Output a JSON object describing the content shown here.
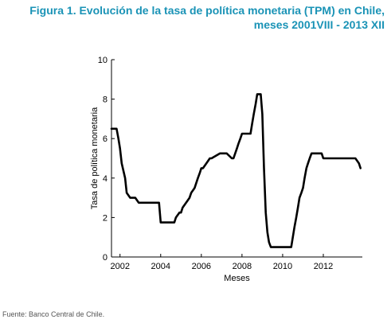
{
  "figure": {
    "title_line1": "Figura 1. Evolución de la tasa de política monetaria (TPM) en Chile,",
    "title_line2": "meses 2001VIII - 2013 XII"
  },
  "source": "Fuente: Banco Central de Chile.",
  "chart_data": {
    "type": "line",
    "xlabel": "Meses",
    "ylabel": "Tasa de política monetaria",
    "xlim": [
      2001.58,
      2013.92
    ],
    "ylim": [
      0,
      10
    ],
    "xticks": [
      2002,
      2004,
      2006,
      2008,
      2010,
      2012
    ],
    "yticks": [
      0,
      2,
      4,
      6,
      8,
      10
    ],
    "grid": false,
    "line_color": "#000000",
    "series": [
      {
        "x": [
          2001.58,
          2001.83,
          2001.92,
          2002.0,
          2002.08,
          2002.25,
          2002.33,
          2002.5,
          2002.58,
          2002.75,
          2002.92,
          2003.0,
          2003.5,
          2003.92,
          2004.0,
          2004.58,
          2004.67,
          2004.75,
          2004.92,
          2005.0,
          2005.08,
          2005.25,
          2005.42,
          2005.5,
          2005.67,
          2005.83,
          2005.92,
          2006.0,
          2006.08,
          2006.25,
          2006.42,
          2006.5,
          2006.92,
          2007.0,
          2007.25,
          2007.5,
          2007.58,
          2007.75,
          2007.83,
          2007.92,
          2008.0,
          2008.42,
          2008.5,
          2008.58,
          2008.67,
          2008.75,
          2008.92,
          2009.0,
          2009.08,
          2009.17,
          2009.25,
          2009.33,
          2009.42,
          2009.5,
          2010.0,
          2010.42,
          2010.5,
          2010.58,
          2010.67,
          2010.75,
          2010.83,
          2010.92,
          2011.0,
          2011.08,
          2011.17,
          2011.25,
          2011.33,
          2011.42,
          2011.92,
          2012.0,
          2013.58,
          2013.75,
          2013.83
        ],
        "values": [
          6.5,
          6.5,
          6.0,
          5.5,
          4.75,
          4.0,
          3.25,
          3.0,
          3.0,
          3.0,
          2.75,
          2.75,
          2.75,
          2.75,
          1.75,
          1.75,
          1.75,
          2.0,
          2.25,
          2.25,
          2.5,
          2.75,
          3.0,
          3.25,
          3.5,
          4.0,
          4.25,
          4.5,
          4.5,
          4.75,
          5.0,
          5.0,
          5.25,
          5.25,
          5.25,
          5.0,
          5.0,
          5.5,
          5.75,
          6.0,
          6.25,
          6.25,
          6.75,
          7.25,
          7.75,
          8.25,
          8.25,
          7.25,
          4.5,
          2.25,
          1.25,
          0.75,
          0.5,
          0.5,
          0.5,
          0.5,
          1.0,
          1.5,
          2.0,
          2.5,
          3.0,
          3.25,
          3.5,
          4.0,
          4.5,
          4.75,
          5.0,
          5.25,
          5.25,
          5.0,
          5.0,
          4.75,
          4.5
        ]
      }
    ]
  }
}
